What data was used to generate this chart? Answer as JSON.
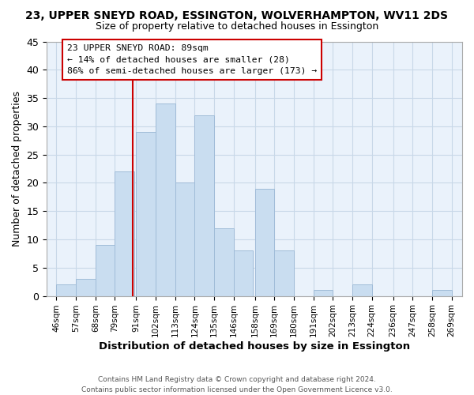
{
  "title": "23, UPPER SNEYD ROAD, ESSINGTON, WOLVERHAMPTON, WV11 2DS",
  "subtitle": "Size of property relative to detached houses in Essington",
  "xlabel": "Distribution of detached houses by size in Essington",
  "ylabel": "Number of detached properties",
  "bar_left_edges": [
    46,
    57,
    68,
    79,
    91,
    102,
    113,
    124,
    135,
    146,
    158,
    169,
    180,
    191,
    202,
    213,
    224,
    236,
    247,
    258
  ],
  "bar_widths": [
    11,
    11,
    11,
    11,
    11,
    11,
    11,
    11,
    11,
    11,
    11,
    11,
    11,
    11,
    11,
    11,
    11,
    11,
    11,
    11
  ],
  "bar_heights": [
    2,
    3,
    9,
    22,
    29,
    34,
    20,
    32,
    12,
    8,
    19,
    8,
    0,
    1,
    0,
    2,
    0,
    0,
    0,
    1
  ],
  "bar_color": "#c9ddf0",
  "bar_edgecolor": "#a0bcd8",
  "grid_color": "#c8d8e8",
  "bg_color": "#eaf2fb",
  "property_line_x": 89,
  "property_line_color": "#cc0000",
  "ylim": [
    0,
    45
  ],
  "yticks": [
    0,
    5,
    10,
    15,
    20,
    25,
    30,
    35,
    40,
    45
  ],
  "xlim": [
    40.5,
    275
  ],
  "xtick_labels": [
    "46sqm",
    "57sqm",
    "68sqm",
    "79sqm",
    "91sqm",
    "102sqm",
    "113sqm",
    "124sqm",
    "135sqm",
    "146sqm",
    "158sqm",
    "169sqm",
    "180sqm",
    "191sqm",
    "202sqm",
    "213sqm",
    "224sqm",
    "236sqm",
    "247sqm",
    "258sqm",
    "269sqm"
  ],
  "xtick_positions": [
    46,
    57,
    68,
    79,
    91,
    102,
    113,
    124,
    135,
    146,
    158,
    169,
    180,
    191,
    202,
    213,
    224,
    236,
    247,
    258,
    269
  ],
  "annotation_line1": "23 UPPER SNEYD ROAD: 89sqm",
  "annotation_line2": "← 14% of detached houses are smaller (28)",
  "annotation_line3": "86% of semi-detached houses are larger (173) →",
  "footer_line1": "Contains HM Land Registry data © Crown copyright and database right 2024.",
  "footer_line2": "Contains public sector information licensed under the Open Government Licence v3.0."
}
